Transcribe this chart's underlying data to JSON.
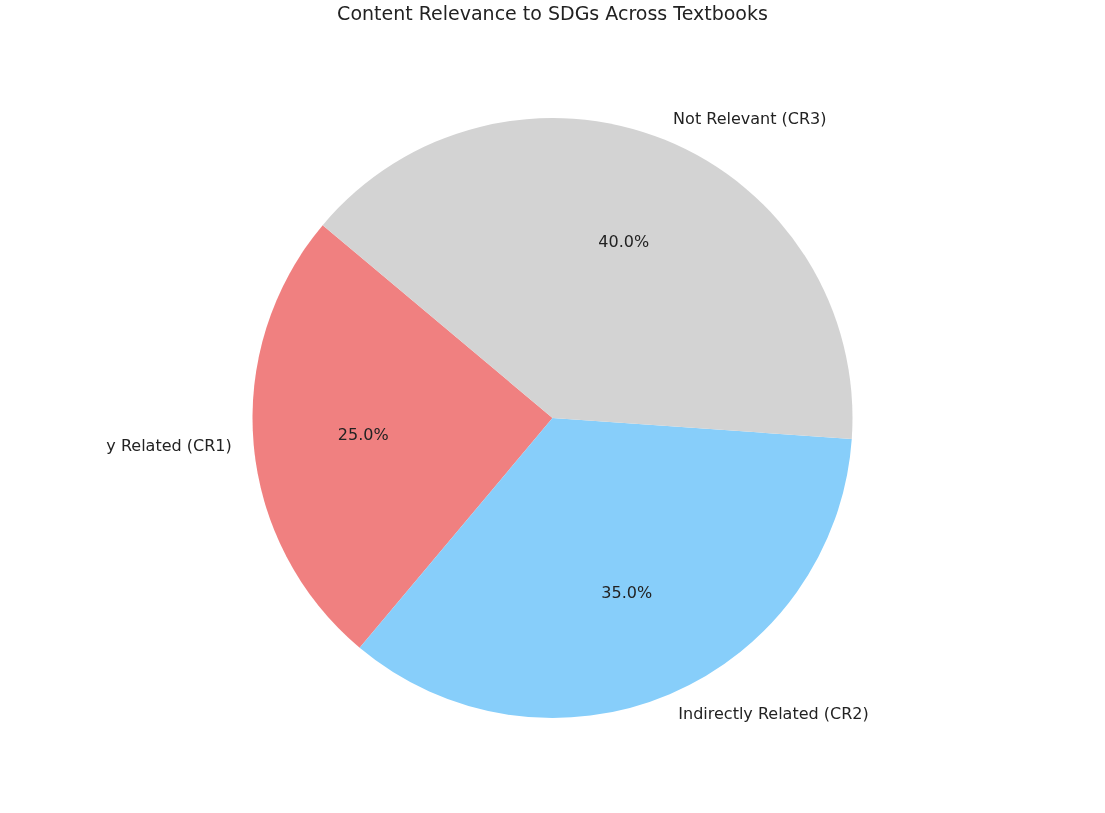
{
  "chart_data": {
    "type": "pie",
    "title": "Content Relevance to SDGs Across Textbooks",
    "categories": [
      "y Related (CR1)",
      "Indirectly Related (CR2)",
      "Not Relevant (CR3)"
    ],
    "values": [
      25,
      35,
      40
    ],
    "value_labels": [
      "25.0%",
      "35.0%",
      "40.0%"
    ],
    "colors": [
      "#f08080",
      "#87cefa",
      "#d3d3d3"
    ]
  }
}
